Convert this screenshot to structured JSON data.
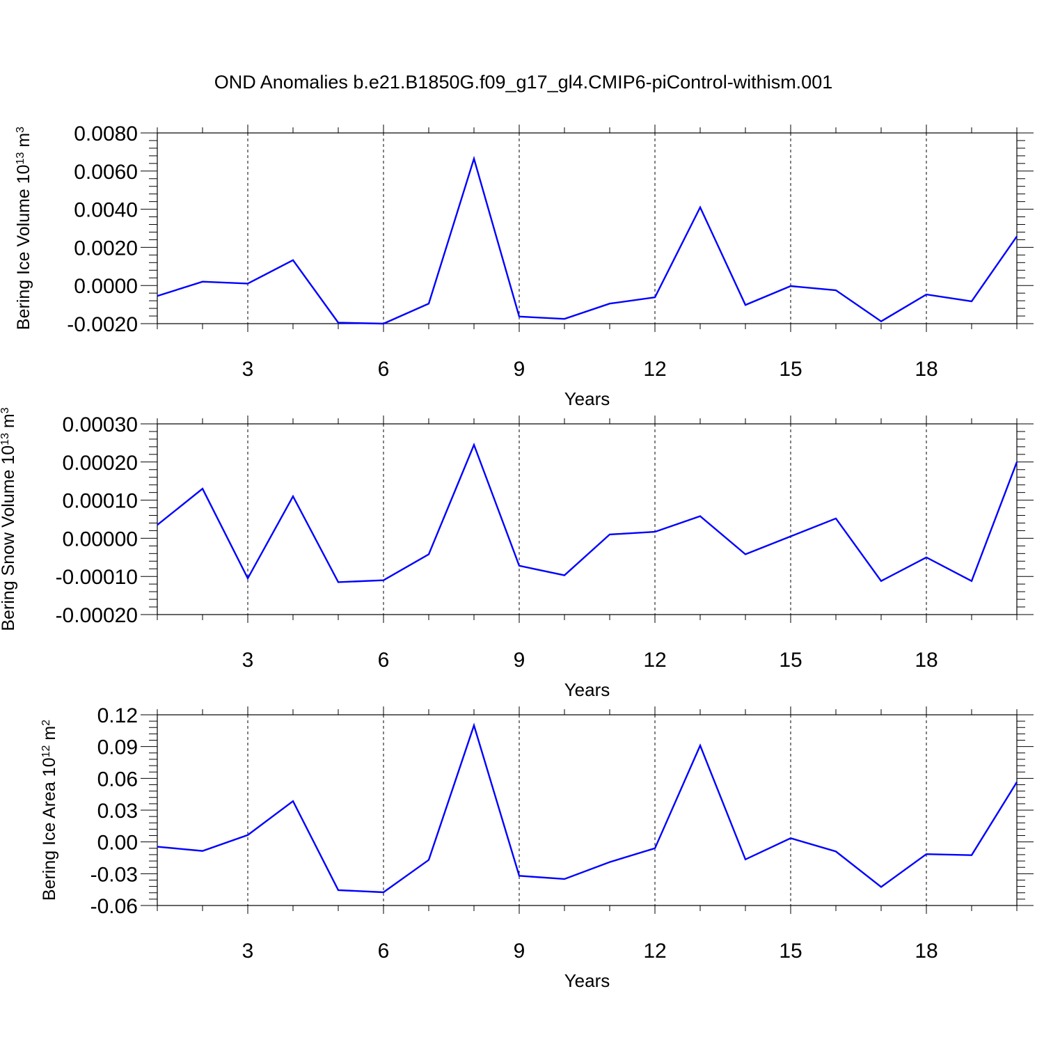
{
  "title": "OND Anomalies b.e21.B1850G.f09_g17_gl4.CMIP6-piControl-withism.001",
  "colors": {
    "line": "#0000ff",
    "axis": "#000000",
    "grid": "#000000"
  },
  "chart_data": [
    {
      "type": "line",
      "ylabel_main": "Bering Ice Volume 10",
      "ylabel_exp": "13",
      "ylabel_unit": " m",
      "ylabel_unit_exp": "3",
      "xlabel": "Years",
      "xlim": [
        1,
        20
      ],
      "ylim": [
        -0.002,
        0.008
      ],
      "yticks": [
        -0.002,
        0.0,
        0.002,
        0.004,
        0.006,
        0.008
      ],
      "ytick_labels": [
        "-0.0020",
        "0.0000",
        "0.0020",
        "0.0040",
        "0.0060",
        "0.0080"
      ],
      "xticks": [
        3,
        6,
        9,
        12,
        15,
        18
      ],
      "xtick_labels": [
        "3",
        "6",
        "9",
        "12",
        "15",
        "18"
      ],
      "grid": "vertical dashed at labeled x ticks",
      "series": [
        {
          "name": "Bering Ice Volume",
          "x": [
            1,
            2,
            3,
            4,
            5,
            6,
            7,
            8,
            9,
            10,
            11,
            12,
            13,
            14,
            15,
            16,
            17,
            18,
            19,
            20
          ],
          "values": [
            -0.00055,
            0.0002,
            0.0001,
            0.00133,
            -0.00195,
            -0.002,
            -0.00095,
            0.00665,
            -0.00163,
            -0.00175,
            -0.00095,
            -0.00062,
            0.0041,
            -0.00102,
            -3e-05,
            -0.00025,
            -0.00188,
            -0.00047,
            -0.00083,
            0.00258
          ]
        }
      ]
    },
    {
      "type": "line",
      "ylabel_main": "Bering Snow Volume 10",
      "ylabel_exp": "13",
      "ylabel_unit": " m",
      "ylabel_unit_exp": "3",
      "xlabel": "Years",
      "xlim": [
        1,
        20
      ],
      "ylim": [
        -0.0002,
        0.0003
      ],
      "yticks": [
        -0.0002,
        -0.0001,
        0.0,
        0.0001,
        0.0002,
        0.0003
      ],
      "ytick_labels": [
        "-0.00020",
        "-0.00010",
        "0.00000",
        "0.00010",
        "0.00020",
        "0.00030"
      ],
      "xticks": [
        3,
        6,
        9,
        12,
        15,
        18
      ],
      "xtick_labels": [
        "3",
        "6",
        "9",
        "12",
        "15",
        "18"
      ],
      "grid": "vertical dashed at labeled x ticks",
      "series": [
        {
          "name": "Bering Snow Volume",
          "x": [
            1,
            2,
            3,
            4,
            5,
            6,
            7,
            8,
            9,
            10,
            11,
            12,
            13,
            14,
            15,
            16,
            17,
            18,
            19,
            20
          ],
          "values": [
            3.5e-05,
            0.00013,
            -0.000105,
            0.00011,
            -0.000115,
            -0.00011,
            -4.2e-05,
            0.000245,
            -7.2e-05,
            -9.7e-05,
            1e-05,
            1.7e-05,
            5.8e-05,
            -4.2e-05,
            5e-06,
            5.2e-05,
            -0.000112,
            -5e-05,
            -0.000112,
            0.0002
          ]
        }
      ]
    },
    {
      "type": "line",
      "ylabel_main": "Bering Ice Area 10",
      "ylabel_exp": "12",
      "ylabel_unit": " m",
      "ylabel_unit_exp": "2",
      "xlabel": "Years",
      "xlim": [
        1,
        20
      ],
      "ylim": [
        -0.06,
        0.12
      ],
      "yticks": [
        -0.06,
        -0.03,
        0.0,
        0.03,
        0.06,
        0.09,
        0.12
      ],
      "ytick_labels": [
        "-0.06",
        "-0.03",
        "0.00",
        "0.03",
        "0.06",
        "0.09",
        "0.12"
      ],
      "xticks": [
        3,
        6,
        9,
        12,
        15,
        18
      ],
      "xtick_labels": [
        "3",
        "6",
        "9",
        "12",
        "15",
        "18"
      ],
      "grid": "vertical dashed at labeled x ticks",
      "series": [
        {
          "name": "Bering Ice Area",
          "x": [
            1,
            2,
            3,
            4,
            5,
            6,
            7,
            8,
            9,
            10,
            11,
            12,
            13,
            14,
            15,
            16,
            17,
            18,
            19,
            20
          ],
          "values": [
            -0.0045,
            -0.0085,
            0.0065,
            0.0385,
            -0.0455,
            -0.0475,
            -0.017,
            0.11,
            -0.032,
            -0.035,
            -0.019,
            -0.006,
            0.091,
            -0.0165,
            0.0035,
            -0.009,
            -0.0425,
            -0.0115,
            -0.0125,
            0.0565
          ]
        }
      ]
    }
  ]
}
